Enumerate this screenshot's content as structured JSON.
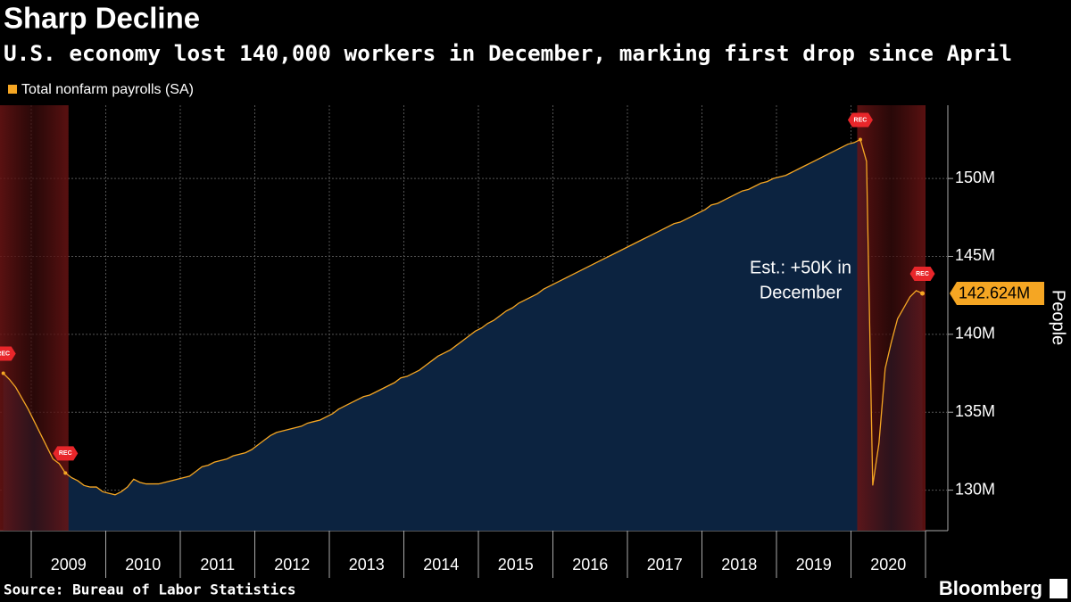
{
  "chart_data": {
    "type": "area",
    "title": "Sharp Decline",
    "subtitle": "U.S. economy lost 140,000 workers in December, marking first drop since April",
    "y_axis_label": "People",
    "source": "Source: Bureau of Labor Statistics",
    "brand": "Bloomberg",
    "annotation": [
      "Est.: +50K in",
      "December"
    ],
    "ylim": [
      127.4,
      154.7
    ],
    "yticks": [
      {
        "value": 130,
        "label": "130M"
      },
      {
        "value": 135,
        "label": "135M"
      },
      {
        "value": 140,
        "label": "140M"
      },
      {
        "value": 145,
        "label": "145M"
      },
      {
        "value": 150,
        "label": "150M"
      }
    ],
    "xticks": [
      "2009",
      "2010",
      "2011",
      "2012",
      "2013",
      "2014",
      "2015",
      "2016",
      "2017",
      "2018",
      "2019",
      "2020"
    ],
    "grid": true,
    "recessions": [
      {
        "start": "2007-12",
        "end": "2009-06",
        "label": "REC"
      },
      {
        "start": "2020-02",
        "end": "2020-12",
        "label": "REC"
      }
    ],
    "x": [
      "2008-08",
      "2008-09",
      "2008-10",
      "2008-11",
      "2008-12",
      "2009-01",
      "2009-02",
      "2009-03",
      "2009-04",
      "2009-05",
      "2009-06",
      "2009-07",
      "2009-08",
      "2009-09",
      "2009-10",
      "2009-11",
      "2009-12",
      "2010-01",
      "2010-02",
      "2010-03",
      "2010-04",
      "2010-05",
      "2010-06",
      "2010-07",
      "2010-08",
      "2010-09",
      "2010-10",
      "2010-11",
      "2010-12",
      "2011-01",
      "2011-02",
      "2011-03",
      "2011-04",
      "2011-05",
      "2011-06",
      "2011-07",
      "2011-08",
      "2011-09",
      "2011-10",
      "2011-11",
      "2011-12",
      "2012-01",
      "2012-02",
      "2012-03",
      "2012-04",
      "2012-05",
      "2012-06",
      "2012-07",
      "2012-08",
      "2012-09",
      "2012-10",
      "2012-11",
      "2012-12",
      "2013-01",
      "2013-02",
      "2013-03",
      "2013-04",
      "2013-05",
      "2013-06",
      "2013-07",
      "2013-08",
      "2013-09",
      "2013-10",
      "2013-11",
      "2013-12",
      "2014-01",
      "2014-02",
      "2014-03",
      "2014-04",
      "2014-05",
      "2014-06",
      "2014-07",
      "2014-08",
      "2014-09",
      "2014-10",
      "2014-11",
      "2014-12",
      "2015-01",
      "2015-02",
      "2015-03",
      "2015-04",
      "2015-05",
      "2015-06",
      "2015-07",
      "2015-08",
      "2015-09",
      "2015-10",
      "2015-11",
      "2015-12",
      "2016-01",
      "2016-02",
      "2016-03",
      "2016-04",
      "2016-05",
      "2016-06",
      "2016-07",
      "2016-08",
      "2016-09",
      "2016-10",
      "2016-11",
      "2016-12",
      "2017-01",
      "2017-02",
      "2017-03",
      "2017-04",
      "2017-05",
      "2017-06",
      "2017-07",
      "2017-08",
      "2017-09",
      "2017-10",
      "2017-11",
      "2017-12",
      "2018-01",
      "2018-02",
      "2018-03",
      "2018-04",
      "2018-05",
      "2018-06",
      "2018-07",
      "2018-08",
      "2018-09",
      "2018-10",
      "2018-11",
      "2018-12",
      "2019-01",
      "2019-02",
      "2019-03",
      "2019-04",
      "2019-05",
      "2019-06",
      "2019-07",
      "2019-08",
      "2019-09",
      "2019-10",
      "2019-11",
      "2019-12",
      "2020-01",
      "2020-02",
      "2020-03",
      "2020-04",
      "2020-05",
      "2020-06",
      "2020-07",
      "2020-08",
      "2020-09",
      "2020-10",
      "2020-11",
      "2020-12"
    ],
    "series": [
      {
        "name": "Total nonfarm payrolls (SA)",
        "color": "#f5a623",
        "values": [
          137.5,
          137.1,
          136.6,
          135.9,
          135.2,
          134.4,
          133.6,
          132.8,
          132.0,
          131.7,
          131.1,
          130.8,
          130.6,
          130.3,
          130.2,
          130.2,
          129.9,
          129.8,
          129.7,
          129.9,
          130.2,
          130.7,
          130.5,
          130.4,
          130.4,
          130.4,
          130.5,
          130.6,
          130.7,
          130.8,
          130.9,
          131.2,
          131.5,
          131.6,
          131.8,
          131.9,
          132.0,
          132.2,
          132.3,
          132.4,
          132.6,
          132.9,
          133.2,
          133.5,
          133.7,
          133.8,
          133.9,
          134.0,
          134.1,
          134.3,
          134.4,
          134.5,
          134.7,
          134.9,
          135.2,
          135.4,
          135.6,
          135.8,
          136.0,
          136.1,
          136.3,
          136.5,
          136.7,
          136.9,
          137.2,
          137.3,
          137.5,
          137.7,
          138.0,
          138.3,
          138.6,
          138.8,
          139.0,
          139.3,
          139.6,
          139.9,
          140.2,
          140.4,
          140.7,
          140.9,
          141.2,
          141.5,
          141.7,
          142.0,
          142.2,
          142.4,
          142.6,
          142.9,
          143.1,
          143.3,
          143.5,
          143.7,
          143.9,
          144.1,
          144.3,
          144.5,
          144.7,
          144.9,
          145.1,
          145.3,
          145.5,
          145.7,
          145.9,
          146.1,
          146.3,
          146.5,
          146.7,
          146.9,
          147.1,
          147.2,
          147.4,
          147.6,
          147.8,
          148.0,
          148.3,
          148.4,
          148.6,
          148.8,
          149.0,
          149.2,
          149.3,
          149.5,
          149.7,
          149.8,
          150.0,
          150.1,
          150.2,
          150.4,
          150.6,
          150.8,
          151.0,
          151.2,
          151.4,
          151.6,
          151.8,
          152.0,
          152.2,
          152.3,
          152.5,
          151.1,
          130.3,
          133.0,
          137.8,
          139.5,
          141.0,
          141.7,
          142.4,
          142.8,
          142.624
        ],
        "value_labels": [
          null,
          null,
          null,
          null,
          null,
          null,
          null,
          null,
          null,
          null,
          null,
          null,
          null,
          null,
          null,
          null,
          null,
          null,
          null,
          null,
          null,
          null,
          null,
          null,
          null,
          null,
          null,
          null,
          null,
          null,
          null,
          null,
          null,
          null,
          null,
          null,
          null,
          null,
          null,
          null,
          null,
          null,
          null,
          null,
          null,
          null,
          null,
          null,
          null,
          null,
          null,
          null,
          null,
          null,
          null,
          null,
          null,
          null,
          null,
          null,
          null,
          null,
          null,
          null,
          null,
          null,
          null,
          null,
          null,
          null,
          null,
          null,
          null,
          null,
          null,
          null,
          null,
          null,
          null,
          null,
          null,
          null,
          null,
          null,
          null,
          null,
          null,
          null,
          null,
          null,
          null,
          null,
          null,
          null,
          null,
          null,
          null,
          null,
          null,
          null,
          null,
          null,
          null,
          null,
          null,
          null,
          null,
          null,
          null,
          null,
          null,
          null,
          null,
          null,
          null,
          null,
          null,
          null,
          null,
          null,
          null,
          null,
          null,
          null,
          null,
          null,
          null,
          null,
          null,
          null,
          null,
          null,
          null,
          null,
          null,
          null,
          null,
          null,
          null,
          null,
          null,
          null,
          null,
          null,
          null,
          null,
          null,
          null,
          "142.624M"
        ]
      }
    ]
  }
}
